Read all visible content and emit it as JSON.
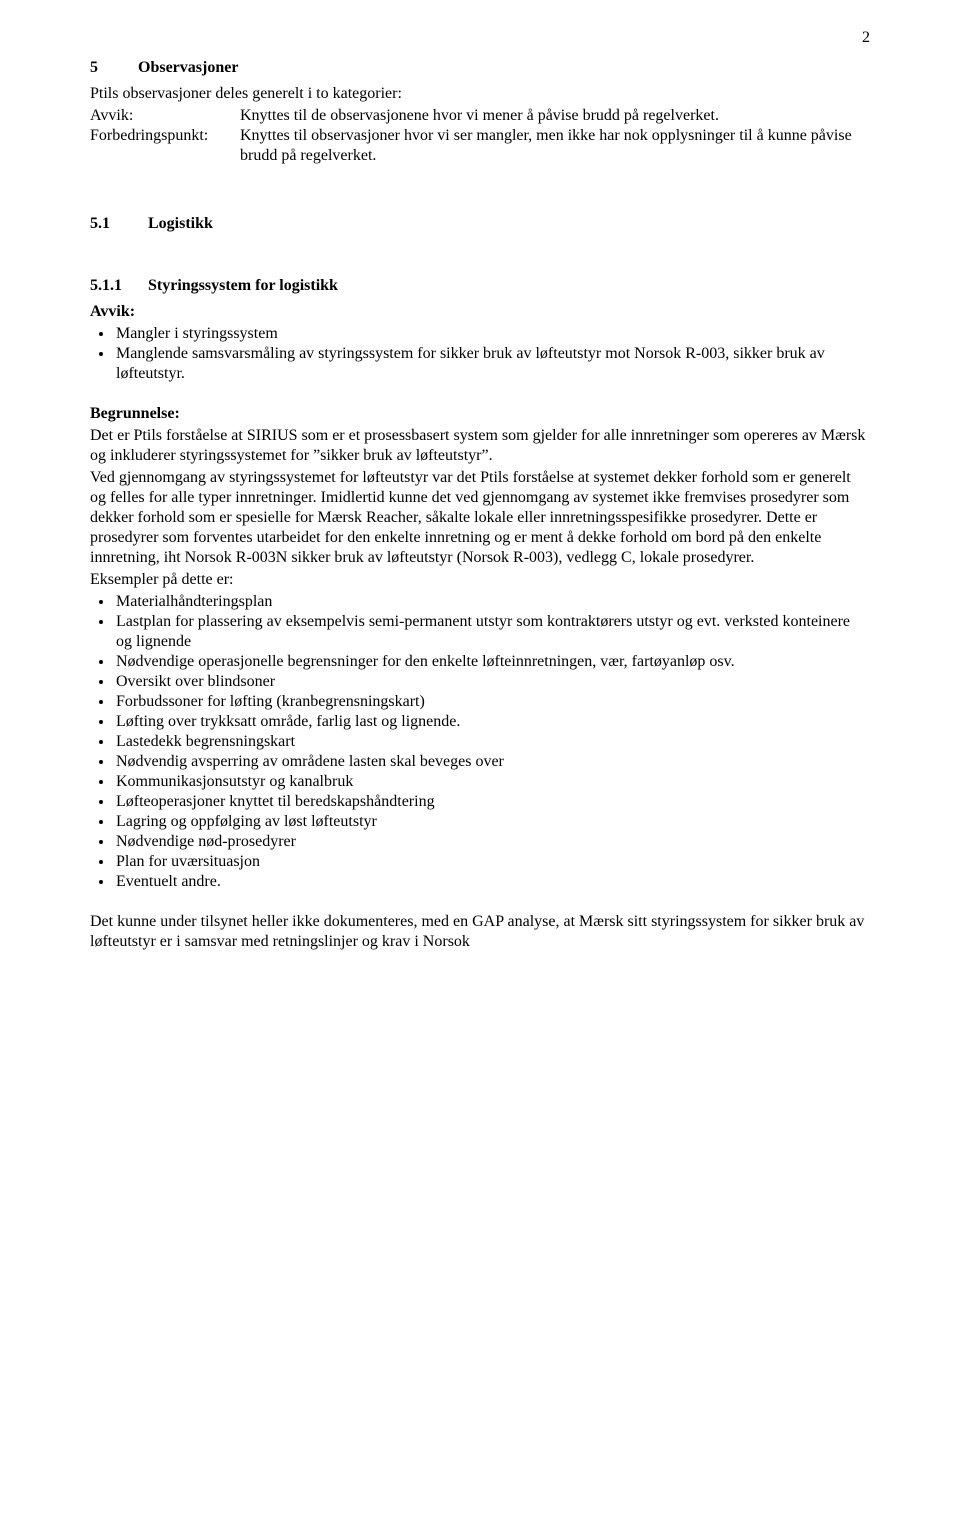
{
  "page_number": "2",
  "section5": {
    "number": "5",
    "title": "Observasjoner",
    "intro": "Ptils observasjoner deles generelt i to kategorier:",
    "definitions": {
      "avvik_label": "Avvik:",
      "avvik_text": "Knyttes til de observasjonene hvor vi mener å påvise brudd på regelverket.",
      "forbedring_label": "Forbedringspunkt:",
      "forbedring_text": "Knyttes til observasjoner hvor vi ser mangler, men ikke har nok opplysninger til å kunne påvise brudd på regelverket."
    }
  },
  "logistikk": {
    "number": "5.1",
    "title": "Logistikk"
  },
  "styring": {
    "number": "5.1.1",
    "title": "Styringssystem for logistikk",
    "avvik_label": "Avvik:",
    "avvik_items": [
      "Mangler i styringssystem",
      "Manglende samsvarsmåling av styringssystem for sikker bruk av løfteutstyr mot Norsok R-003, sikker bruk av løfteutstyr."
    ],
    "begrunnelse_label": "Begrunnelse:",
    "begrunnelse_paras": [
      "Det er Ptils forståelse at SIRIUS som er et prosessbasert system som gjelder for alle innretninger som opereres av Mærsk og inkluderer styringssystemet for ”sikker bruk av løfteutstyr”.",
      "Ved gjennomgang av styringssystemet for løfteutstyr var det Ptils forståelse at systemet dekker forhold som er generelt og felles for alle typer innretninger. Imidlertid kunne det ved gjennomgang av systemet ikke fremvises prosedyrer som dekker forhold som er spesielle for Mærsk Reacher, såkalte lokale eller innretningsspesifikke prosedyrer. Dette er prosedyrer som forventes utarbeidet for den enkelte innretning og er ment å dekke forhold om bord på den enkelte innretning, iht Norsok R-003N sikker bruk av løfteutstyr (Norsok R-003), vedlegg C, lokale prosedyrer.",
      "Eksempler på dette er:"
    ],
    "eksempler": [
      "Materialhåndteringsplan",
      "Lastplan for plassering av eksempelvis semi-permanent utstyr som kontraktørers utstyr og evt. verksted konteinere og lignende",
      "Nødvendige operasjonelle begrensninger for den enkelte løfteinnretningen, vær, fartøyanløp osv.",
      "Oversikt over blindsoner",
      "Forbudssoner for løfting (kranbegrensningskart)",
      "Løfting over trykksatt område, farlig last og lignende.",
      "Lastedekk begrensningskart",
      "Nødvendig avsperring av områdene lasten skal beveges over",
      "Kommunikasjonsutstyr og kanalbruk",
      "Løfteoperasjoner knyttet til beredskapshåndtering",
      "Lagring og oppfølging av løst løfteutstyr",
      "Nødvendige nød-prosedyrer",
      "Plan for uværsituasjon",
      "Eventuelt andre."
    ],
    "closing": "Det kunne under tilsynet heller ikke dokumenteres, med en GAP analyse, at Mærsk sitt styringssystem for sikker bruk av løfteutstyr er i samsvar med retningslinjer og krav i Norsok"
  }
}
